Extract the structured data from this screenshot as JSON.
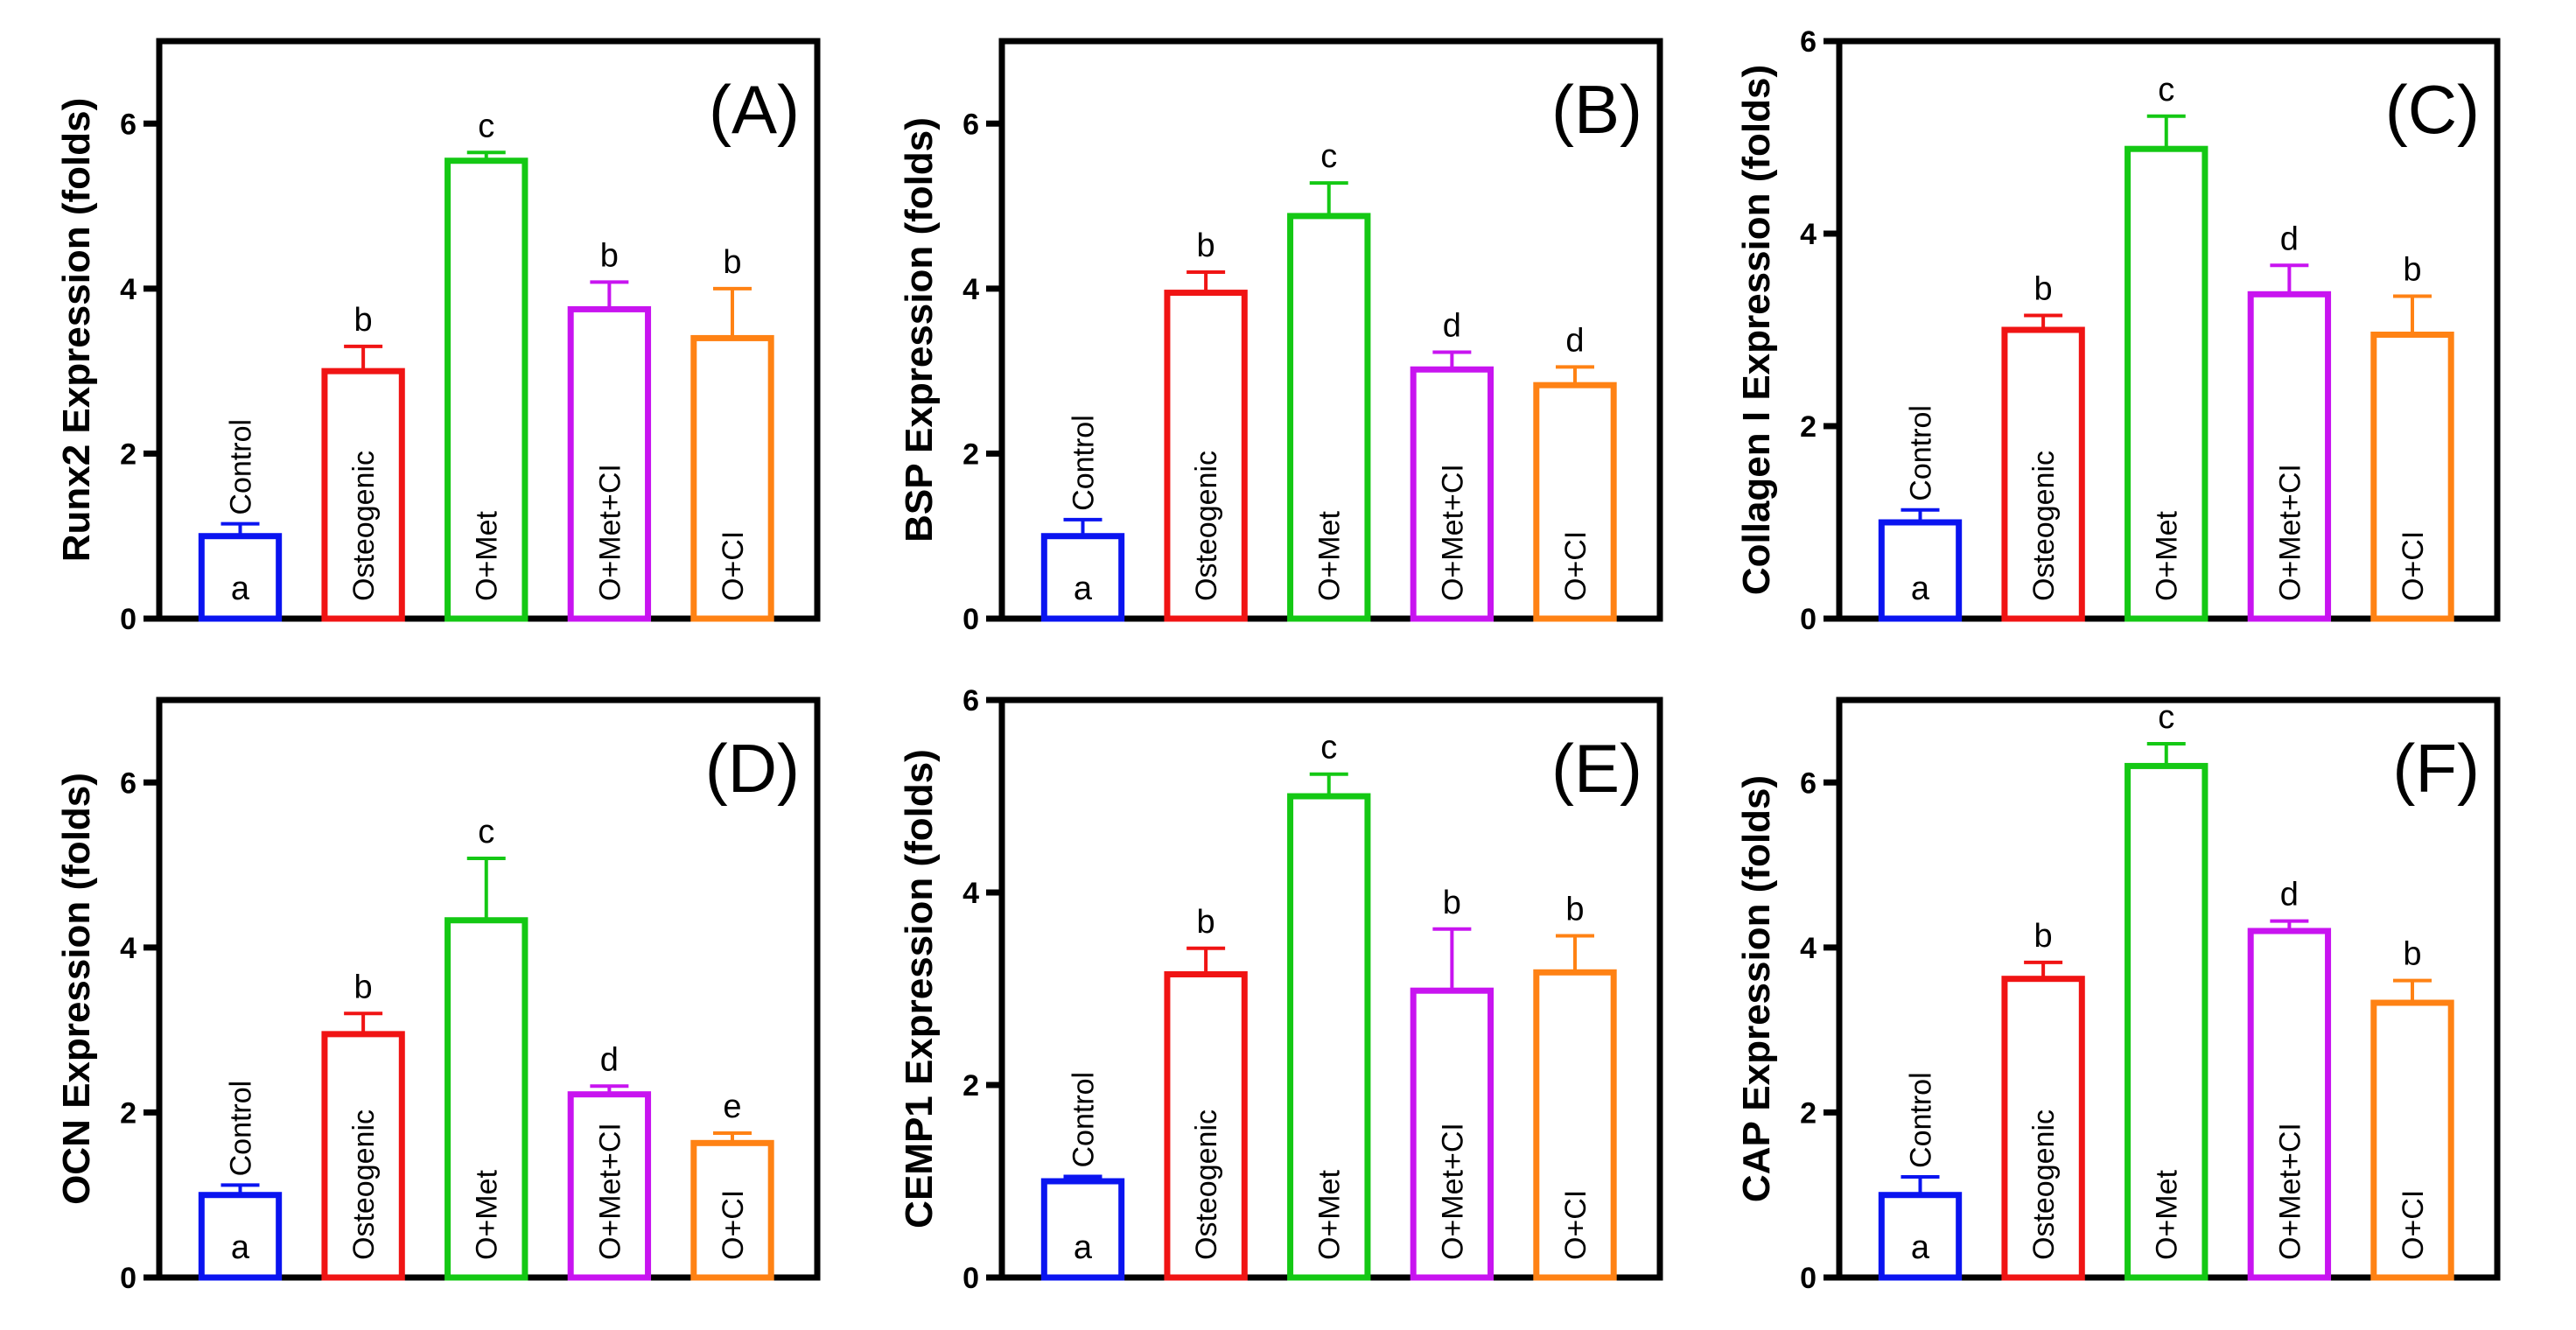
{
  "chart_data": [
    {
      "type": "bar",
      "panel": "(A)",
      "ylabel": "Runx2 Expression (folds)",
      "ylim": [
        0,
        7
      ],
      "yticks": [
        0,
        2,
        4,
        6
      ],
      "categories": [
        "Control",
        "Osteogenic",
        "O+Met",
        "O+Met+CI",
        "O+CI"
      ],
      "values": [
        1.0,
        3.0,
        5.55,
        3.75,
        3.4
      ],
      "errors": [
        0.15,
        0.3,
        0.1,
        0.33,
        0.6
      ],
      "letters": [
        "a",
        "b",
        "c",
        "b",
        "b"
      ]
    },
    {
      "type": "bar",
      "panel": "(B)",
      "ylabel": "BSP Expression (folds)",
      "ylim": [
        0,
        7
      ],
      "yticks": [
        0,
        2,
        4,
        6
      ],
      "categories": [
        "Control",
        "Osteogenic",
        "O+Met",
        "O+Met+CI",
        "O+CI"
      ],
      "values": [
        1.0,
        3.95,
        4.88,
        3.02,
        2.83
      ],
      "errors": [
        0.2,
        0.25,
        0.4,
        0.21,
        0.22
      ],
      "letters": [
        "a",
        "b",
        "c",
        "d",
        "d"
      ]
    },
    {
      "type": "bar",
      "panel": "(C)",
      "ylabel": "Collagen I Expression (folds)",
      "ylim": [
        0,
        6
      ],
      "yticks": [
        0,
        2,
        4,
        6
      ],
      "categories": [
        "Control",
        "Osteogenic",
        "O+Met",
        "O+Met+CI",
        "O+CI"
      ],
      "values": [
        1.0,
        3.0,
        4.88,
        3.37,
        2.95
      ],
      "errors": [
        0.13,
        0.15,
        0.34,
        0.3,
        0.4
      ],
      "letters": [
        "a",
        "b",
        "c",
        "d",
        "b"
      ]
    },
    {
      "type": "bar",
      "panel": "(D)",
      "ylabel": "OCN Expression (folds)",
      "ylim": [
        0,
        7
      ],
      "yticks": [
        0,
        2,
        4,
        6
      ],
      "categories": [
        "Control",
        "Osteogenic",
        "O+Met",
        "O+Met+CI",
        "O+CI"
      ],
      "values": [
        1.0,
        2.95,
        4.33,
        2.22,
        1.63
      ],
      "errors": [
        0.12,
        0.25,
        0.75,
        0.1,
        0.12
      ],
      "letters": [
        "a",
        "b",
        "c",
        "d",
        "e"
      ]
    },
    {
      "type": "bar",
      "panel": "(E)",
      "ylabel": "CEMP1 Expression (folds)",
      "ylim": [
        0,
        6
      ],
      "yticks": [
        0,
        2,
        4,
        6
      ],
      "categories": [
        "Control",
        "Osteogenic",
        "O+Met",
        "O+Met+CI",
        "O+CI"
      ],
      "values": [
        1.0,
        3.15,
        5.0,
        2.98,
        3.17
      ],
      "errors": [
        0.05,
        0.27,
        0.23,
        0.64,
        0.38
      ],
      "letters": [
        "a",
        "b",
        "c",
        "b",
        "b"
      ]
    },
    {
      "type": "bar",
      "panel": "(F)",
      "ylabel": "CAP Expression (folds)",
      "ylim": [
        0,
        7
      ],
      "yticks": [
        0,
        2,
        4,
        6
      ],
      "categories": [
        "Control",
        "Osteogenic",
        "O+Met",
        "O+Met+CI",
        "O+CI"
      ],
      "values": [
        1.0,
        3.62,
        6.2,
        4.2,
        3.33
      ],
      "errors": [
        0.22,
        0.2,
        0.27,
        0.12,
        0.27
      ],
      "letters": [
        "a",
        "b",
        "c",
        "d",
        "b"
      ]
    }
  ],
  "colors": [
    "#0a14f0",
    "#f01414",
    "#14c814",
    "#c814f0",
    "#ff8214"
  ]
}
